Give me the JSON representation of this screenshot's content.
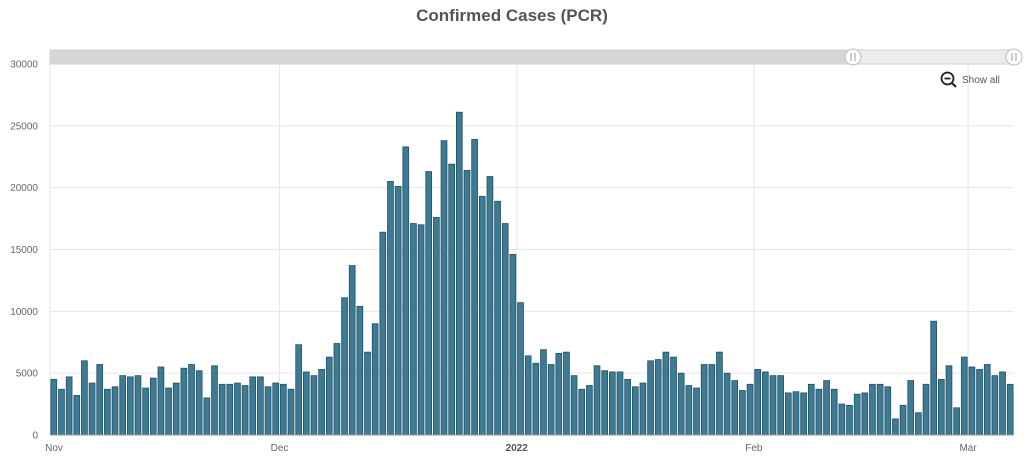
{
  "chart_data": {
    "type": "bar",
    "title": "Confirmed Cases (PCR)",
    "xlabel": "",
    "ylabel": "",
    "ylim": [
      0,
      30000
    ],
    "yticks": [
      0,
      5000,
      10000,
      15000,
      20000,
      25000,
      30000
    ],
    "xticks": [
      {
        "label": "Nov",
        "date": "2021-11-01",
        "bold": false
      },
      {
        "label": "Dec",
        "date": "2021-12-01",
        "bold": false
      },
      {
        "label": "2022",
        "date": "2022-01-01",
        "bold": true
      },
      {
        "label": "Feb",
        "date": "2022-02-01",
        "bold": false
      },
      {
        "label": "Mar",
        "date": "2022-03-01",
        "bold": false
      }
    ],
    "grid": true,
    "bar_color": "#3d7a94",
    "start_date": "2021-11-01",
    "end_date": "2022-03-06",
    "series": [
      {
        "values": [
          4500,
          3700,
          4700,
          3200,
          6000,
          4200,
          5700,
          3700,
          3900,
          4800,
          4700,
          4800,
          3800,
          4600,
          5500,
          3800,
          4200,
          5400,
          5700,
          5200,
          3000,
          5600,
          4100,
          4100,
          4200,
          4000,
          4700,
          4700,
          3900,
          4200,
          4100,
          3700,
          7300,
          5100,
          4800,
          5300,
          6300,
          7400,
          11100,
          13700,
          10400,
          6700,
          9000,
          16400,
          20500,
          20100,
          23300,
          17100,
          17000,
          21300,
          17600,
          23800,
          21900,
          26100,
          21400,
          23900,
          19300,
          20900,
          18900,
          17100,
          14600,
          10700,
          6400,
          5800,
          6900,
          5700,
          6600,
          6700,
          4800,
          3700,
          4000,
          5600,
          5200,
          5100,
          5100,
          4500,
          3900,
          4200,
          6000,
          6100,
          6700,
          6300,
          5000,
          4000,
          3800,
          5700,
          5700,
          6700,
          5000,
          4400,
          3600,
          4100,
          5300,
          5100,
          4800,
          4800,
          3400,
          3500,
          3400,
          4100,
          3700,
          4400,
          3700,
          2500,
          2400,
          3300,
          3400,
          4100,
          4100,
          3900,
          1300,
          2400,
          4400,
          1800,
          4100,
          9200,
          4500,
          5600,
          2200,
          6300,
          5500,
          5300,
          5700,
          4800,
          5100,
          4100
        ]
      }
    ]
  },
  "navigator": {
    "range_start": "2021-11-01",
    "range_end": "2022-03-06"
  },
  "controls": {
    "show_all_label": "Show all",
    "show_all_icon": "zoom-out-icon"
  }
}
